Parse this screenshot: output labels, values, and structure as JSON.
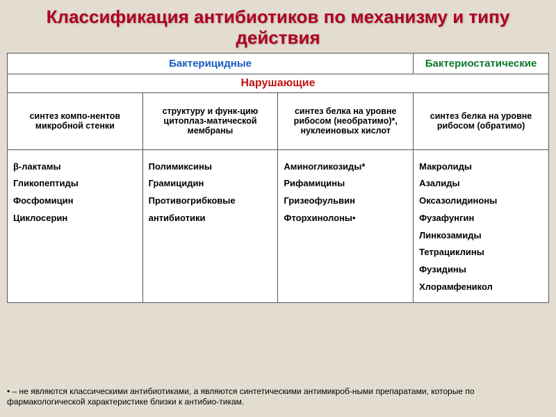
{
  "colors": {
    "slide_bg": "#e3ddd1",
    "title_color": "#b00020",
    "hdr_bactericidal_color": "#155cc0",
    "hdr_bacteriostatic_color": "#0a7a2a",
    "subheader_color": "#c01515",
    "cell_bg": "#ffffff",
    "border": "#555555",
    "text": "#000000"
  },
  "title": "Классификация антибиотиков по механизму и типу действия",
  "header": {
    "bactericidal": "Бактерицидные",
    "bacteriostatic": "Бактериостатические"
  },
  "subheader": "Нарушающие",
  "mechanisms": {
    "col1": "синтез компо-нентов микробной стенки",
    "col2": "структуру и функ-цию цитоплаз-матической мембраны",
    "col3": "синтез белка на уровне рибосом (необратимо)*, нуклеиновых кислот",
    "col4": "синтез белка на уровне рибосом (обратимо)"
  },
  "drugs": {
    "col1": "β-лактамы\nГликопептиды\nФосфомицин\nЦиклосерин",
    "col2": "Полимиксины\nГрамицидин\nПротивогрибковые антибиотики",
    "col3": "Аминогликозиды*\nРифамицины\nГризеофульвин\nФторхинолоны•",
    "col4": "Макролиды\nАзалиды\nОксазолидиноны\nФузафунгин\nЛинкозамиды\nТетрациклины\nФузидины\nХлорамфеникол"
  },
  "footnote": "• – не являются классическими антибиотиками, а являются синтетическими антимикроб-ными препаратами, которые по фармакологической характеристике близки к антибио-тикам."
}
